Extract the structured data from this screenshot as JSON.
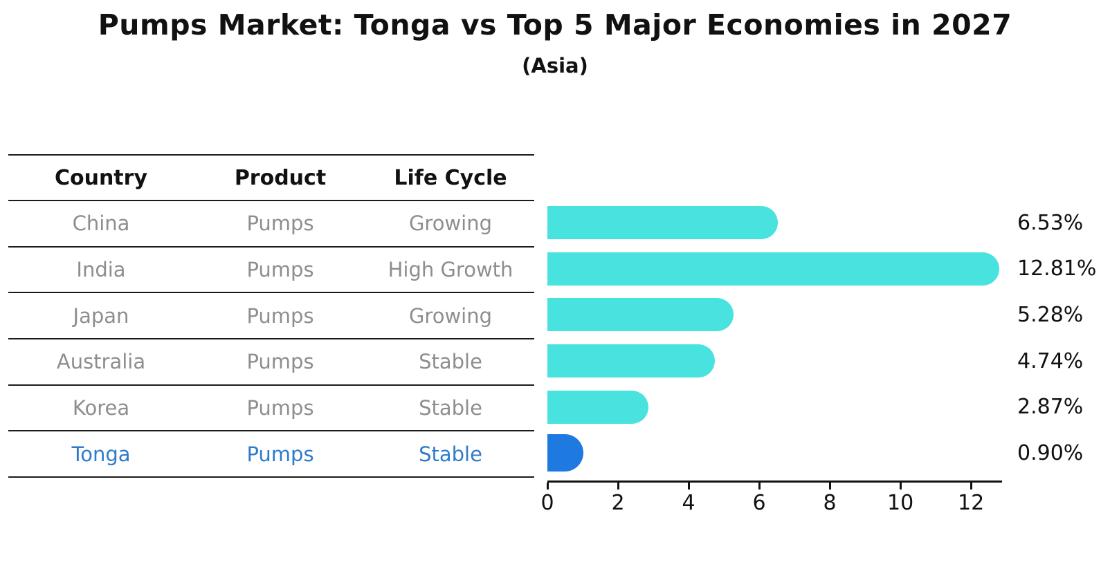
{
  "title": "Pumps Market: Tonga vs Top 5 Major Economies in 2027",
  "subtitle": "(Asia)",
  "table": {
    "headers": [
      "Country",
      "Product",
      "Life Cycle"
    ],
    "rows": [
      {
        "country": "China",
        "product": "Pumps",
        "life_cycle": "Growing",
        "highlighted": false
      },
      {
        "country": "India",
        "product": "Pumps",
        "life_cycle": "High Growth",
        "highlighted": false
      },
      {
        "country": "Japan",
        "product": "Pumps",
        "life_cycle": "Growing",
        "highlighted": false
      },
      {
        "country": "Australia",
        "product": "Pumps",
        "life_cycle": "Stable",
        "highlighted": false
      },
      {
        "country": "Korea",
        "product": "Pumps",
        "life_cycle": "Stable",
        "highlighted": false
      },
      {
        "country": "Tonga",
        "product": "Pumps",
        "life_cycle": "Stable",
        "highlighted": true
      }
    ]
  },
  "chart_data": {
    "type": "bar",
    "orientation": "horizontal",
    "title": "Pumps Market: Tonga vs Top 5 Major Economies in 2027",
    "subtitle": "(Asia)",
    "categories": [
      "China",
      "India",
      "Japan",
      "Australia",
      "Korea",
      "Tonga"
    ],
    "values": [
      6.53,
      12.81,
      5.28,
      4.74,
      2.87,
      0.9
    ],
    "value_labels": [
      "6.53%",
      "12.81%",
      "5.28%",
      "4.74%",
      "2.87%",
      "0.90%"
    ],
    "xlim": [
      0,
      12.88
    ],
    "xticks": [
      0,
      2,
      4,
      6,
      8,
      10,
      12
    ],
    "grid": false,
    "legend": null,
    "highlight_index": 5
  },
  "colors": {
    "bar": "#48e3df",
    "highlight_bar": "#1e79e0",
    "highlight_text": "#2e7bcb",
    "cell_text": "#8e8e8e",
    "text": "#111111",
    "background": "#ffffff"
  }
}
